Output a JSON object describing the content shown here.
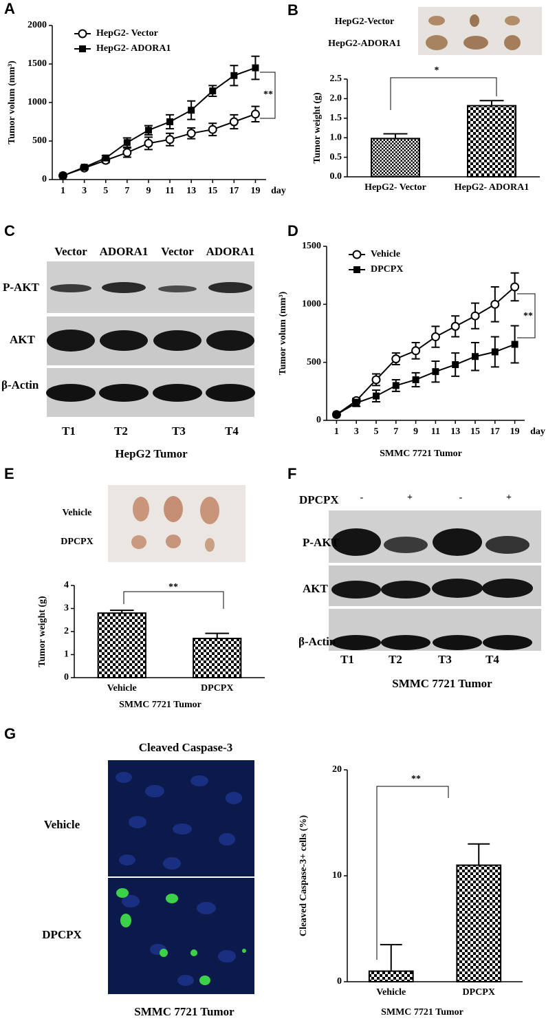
{
  "panel_labels": [
    "A",
    "B",
    "C",
    "D",
    "E",
    "F",
    "G"
  ],
  "chart_data": [
    {
      "type": "line",
      "ylabel": "Tumor volum (mm³)",
      "xlabel": "day",
      "annotation": "**",
      "x": [
        1,
        3,
        5,
        7,
        9,
        11,
        13,
        15,
        17,
        19
      ],
      "xlim": [
        0,
        20
      ],
      "xticks": [
        1,
        3,
        5,
        7,
        9,
        11,
        13,
        15,
        17,
        19
      ],
      "ylim": [
        0,
        2000
      ],
      "yticks": [
        0,
        500,
        1000,
        1500,
        2000
      ],
      "legend": "upper left",
      "series": [
        {
          "name": "HepG2- Vector",
          "color": "#000000",
          "marker": "open-circle",
          "values": [
            50,
            150,
            250,
            350,
            470,
            520,
            600,
            650,
            750,
            850
          ],
          "errors": [
            0,
            20,
            30,
            60,
            80,
            80,
            70,
            80,
            90,
            100
          ]
        },
        {
          "name": "HepG2- ADORA1",
          "color": "#000000",
          "marker": "filled-square",
          "values": [
            50,
            160,
            280,
            480,
            640,
            750,
            900,
            1150,
            1350,
            1450
          ],
          "errors": [
            0,
            20,
            30,
            60,
            60,
            90,
            120,
            70,
            130,
            150
          ]
        }
      ]
    },
    {
      "type": "bar",
      "ylabel": "Tumor weight (g)",
      "annotation": "*",
      "categories": [
        "HepG2- Vector",
        "HepG2- ADORA1"
      ],
      "values": [
        0.98,
        1.82
      ],
      "errors": [
        0.12,
        0.13
      ],
      "color": "#000000",
      "ylim": [
        0,
        2.5
      ],
      "yticks": [
        {
          "value": 0,
          "label": "0.0"
        },
        0.5,
        {
          "value": 1,
          "label": "1.0"
        },
        1.5,
        {
          "value": 2,
          "label": "2.0"
        },
        2.5
      ]
    },
    {
      "type": "line",
      "ylabel": "Tumor volum (mm³)",
      "xlabel": "day",
      "annotation": "**",
      "caption": "SMMC 7721 Tumor",
      "x": [
        1,
        3,
        5,
        7,
        9,
        11,
        13,
        15,
        17,
        19
      ],
      "xlim": [
        0,
        20
      ],
      "xticks": [
        1,
        3,
        5,
        7,
        9,
        11,
        13,
        15,
        17,
        19
      ],
      "ylim": [
        0,
        1500
      ],
      "yticks": [
        0,
        500,
        1000,
        1500
      ],
      "legend": "upper left",
      "series": [
        {
          "name": "Vehicle",
          "color": "#000000",
          "marker": "open-circle",
          "values": [
            50,
            170,
            350,
            530,
            600,
            720,
            810,
            900,
            1000,
            1150
          ],
          "errors": [
            0,
            20,
            50,
            50,
            70,
            90,
            90,
            110,
            150,
            120
          ]
        },
        {
          "name": "DPCPX",
          "color": "#000000",
          "marker": "filled-square",
          "values": [
            50,
            150,
            210,
            300,
            350,
            420,
            480,
            550,
            590,
            655
          ],
          "errors": [
            0,
            30,
            50,
            50,
            60,
            90,
            100,
            120,
            130,
            160
          ]
        }
      ]
    },
    {
      "type": "bar",
      "ylabel": "Tumor weight (g)",
      "annotation": "**",
      "caption": "SMMC 7721 Tumor",
      "categories": [
        "Vehicle",
        "DPCPX"
      ],
      "values": [
        2.8,
        1.7
      ],
      "errors": [
        0.12,
        0.22
      ],
      "color": "#000000",
      "ylim": [
        0,
        4
      ],
      "yticks": [
        0,
        1,
        2,
        3,
        4
      ]
    },
    {
      "type": "bar",
      "ylabel": "Cleaved Caspase-3+ cells (%)",
      "annotation": "**",
      "caption": "SMMC 7721 Tumor",
      "categories": [
        "Vehicle",
        "DPCPX"
      ],
      "values": [
        1,
        11
      ],
      "errors": [
        2.5,
        2
      ],
      "color": "#000000",
      "ylim": [
        0,
        20
      ],
      "yticks": [
        0,
        10,
        20
      ]
    }
  ],
  "photo_b": {
    "row_labels": [
      "HepG2-Vector",
      "HepG2-ADORA1"
    ]
  },
  "blot_c": {
    "column_labels": [
      "Vector",
      "ADORA1",
      "Vector",
      "ADORA1"
    ],
    "row_labels": [
      "P-AKT",
      "AKT",
      "β-Actin"
    ],
    "lane_labels": [
      "T1",
      "T2",
      "T3",
      "T4"
    ],
    "caption": "HepG2 Tumor"
  },
  "photo_e": {
    "row_labels": [
      "Vehicle",
      "DPCPX"
    ]
  },
  "blot_f": {
    "treatment_label": "DPCPX",
    "column_labels": [
      "-",
      "+",
      "-",
      "+"
    ],
    "row_labels": [
      "P-AKT",
      "AKT",
      "β-Actin"
    ],
    "lane_labels": [
      "T1",
      "T2",
      "T3",
      "T4"
    ],
    "caption": "SMMC 7721 Tumor"
  },
  "image_g": {
    "title": "Cleaved Caspase-3",
    "row_labels": [
      "Vehicle",
      "DPCPX"
    ],
    "caption": "SMMC 7721 Tumor"
  }
}
